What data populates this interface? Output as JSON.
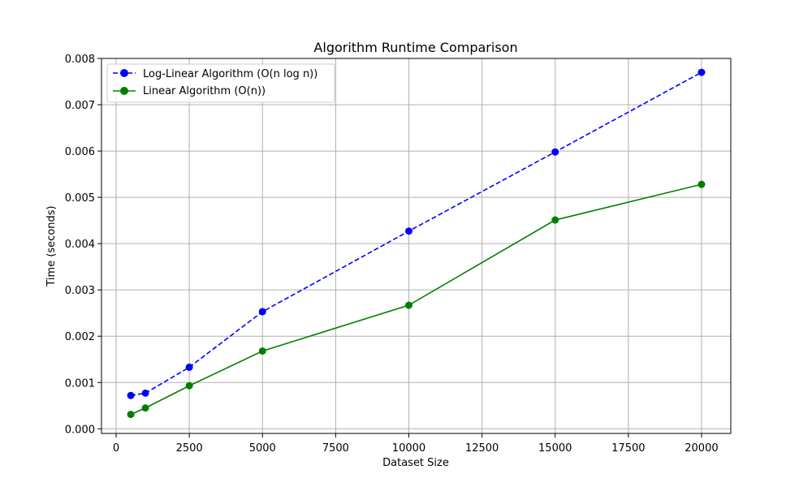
{
  "chart_data": {
    "type": "line",
    "title": "Algorithm Runtime Comparison",
    "xlabel": "Dataset Size",
    "ylabel": "Time (seconds)",
    "xlim": [
      -500,
      21000
    ],
    "ylim": [
      -0.0001,
      0.008
    ],
    "x_ticks": [
      0,
      2500,
      5000,
      7500,
      10000,
      12500,
      15000,
      17500,
      20000
    ],
    "y_ticks": [
      0.0,
      0.001,
      0.002,
      0.003,
      0.004,
      0.005,
      0.006,
      0.007,
      0.008
    ],
    "x_tick_labels": [
      "0",
      "2500",
      "5000",
      "7500",
      "10000",
      "12500",
      "15000",
      "17500",
      "20000"
    ],
    "y_tick_labels": [
      "0.000",
      "0.001",
      "0.002",
      "0.003",
      "0.004",
      "0.005",
      "0.006",
      "0.007",
      "0.008"
    ],
    "grid": true,
    "legend_position": "top-left",
    "x": [
      500,
      1000,
      2500,
      5000,
      10000,
      15000,
      20000
    ],
    "series": [
      {
        "name": "Log-Linear Algorithm (O(n log n))",
        "values": [
          0.00072,
          0.00077,
          0.00133,
          0.00253,
          0.00427,
          0.00598,
          0.0077
        ],
        "color": "#0000ff",
        "linestyle": "dashed",
        "marker": "circle"
      },
      {
        "name": "Linear Algorithm (O(n))",
        "values": [
          0.00031,
          0.00045,
          0.00093,
          0.00168,
          0.00267,
          0.00451,
          0.00528
        ],
        "color": "#008000",
        "linestyle": "solid",
        "marker": "circle"
      }
    ]
  }
}
